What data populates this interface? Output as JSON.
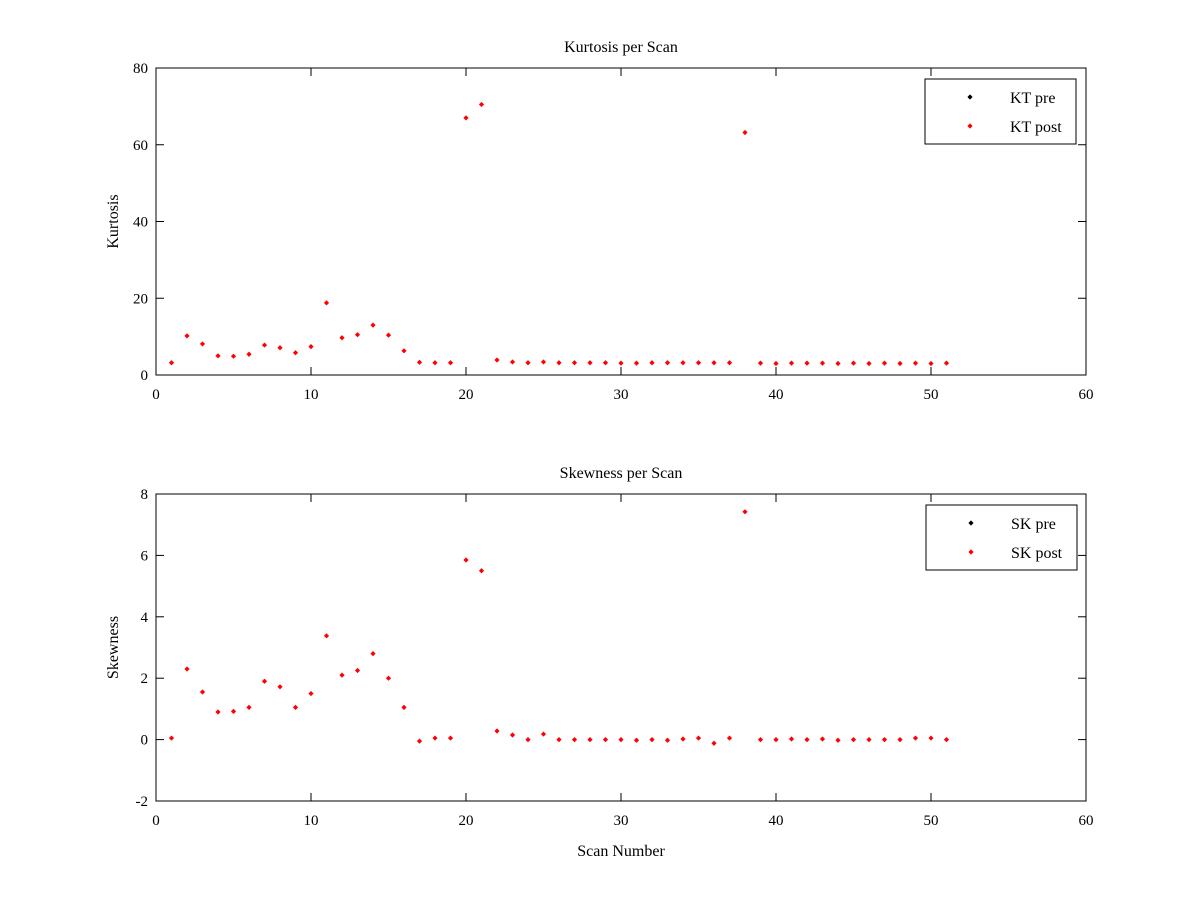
{
  "chart_data": [
    {
      "type": "scatter",
      "title": "Kurtosis per Scan",
      "xlabel": "",
      "ylabel": "Kurtosis",
      "xlim": [
        0,
        60
      ],
      "ylim": [
        0,
        80
      ],
      "xticks": [
        0,
        10,
        20,
        30,
        40,
        50,
        60
      ],
      "yticks": [
        0,
        20,
        40,
        60,
        80
      ],
      "grid": false,
      "legend_position": "top-right",
      "series": [
        {
          "name": "KT pre",
          "color": "#000000",
          "marker": "diamond",
          "x": [],
          "y": []
        },
        {
          "name": "KT post",
          "color": "#ff0000",
          "marker": "diamond",
          "x": [
            1,
            2,
            3,
            4,
            5,
            6,
            7,
            8,
            9,
            10,
            11,
            12,
            13,
            14,
            15,
            16,
            17,
            18,
            19,
            20,
            21,
            22,
            23,
            24,
            25,
            26,
            27,
            28,
            29,
            30,
            31,
            32,
            33,
            34,
            35,
            36,
            37,
            38,
            39,
            40,
            41,
            42,
            43,
            44,
            45,
            46,
            47,
            48,
            49,
            50,
            51
          ],
          "y": [
            3.2,
            10.2,
            8.1,
            5.0,
            4.9,
            5.4,
            7.8,
            7.1,
            5.8,
            7.4,
            18.8,
            9.7,
            10.5,
            13.0,
            10.4,
            6.3,
            3.3,
            3.2,
            3.2,
            67.0,
            70.5,
            3.9,
            3.4,
            3.2,
            3.4,
            3.2,
            3.2,
            3.2,
            3.2,
            3.1,
            3.1,
            3.2,
            3.2,
            3.2,
            3.2,
            3.2,
            3.2,
            63.2,
            3.1,
            3.0,
            3.1,
            3.1,
            3.1,
            3.0,
            3.1,
            3.0,
            3.1,
            3.0,
            3.1,
            3.0,
            3.1
          ]
        }
      ]
    },
    {
      "type": "scatter",
      "title": "Skewness per Scan",
      "xlabel": "Scan Number",
      "ylabel": "Skewness",
      "xlim": [
        0,
        60
      ],
      "ylim": [
        -2,
        8
      ],
      "xticks": [
        0,
        10,
        20,
        30,
        40,
        50,
        60
      ],
      "yticks": [
        -2,
        0,
        2,
        4,
        6,
        8
      ],
      "grid": false,
      "legend_position": "top-right",
      "series": [
        {
          "name": "SK pre",
          "color": "#000000",
          "marker": "diamond",
          "x": [],
          "y": []
        },
        {
          "name": "SK post",
          "color": "#ff0000",
          "marker": "diamond",
          "x": [
            1,
            2,
            3,
            4,
            5,
            6,
            7,
            8,
            9,
            10,
            11,
            12,
            13,
            14,
            15,
            16,
            17,
            18,
            19,
            20,
            21,
            22,
            23,
            24,
            25,
            26,
            27,
            28,
            29,
            30,
            31,
            32,
            33,
            34,
            35,
            36,
            37,
            38,
            39,
            40,
            41,
            42,
            43,
            44,
            45,
            46,
            47,
            48,
            49,
            50,
            51
          ],
          "y": [
            0.05,
            2.3,
            1.55,
            0.9,
            0.92,
            1.05,
            1.9,
            1.72,
            1.05,
            1.5,
            3.38,
            2.1,
            2.25,
            2.8,
            2.0,
            1.05,
            -0.05,
            0.05,
            0.05,
            5.85,
            5.5,
            0.28,
            0.15,
            0.0,
            0.18,
            0.0,
            0.0,
            0.0,
            0.0,
            0.0,
            -0.02,
            0.0,
            -0.02,
            0.02,
            0.05,
            -0.12,
            0.05,
            7.42,
            0.0,
            0.0,
            0.02,
            0.0,
            0.02,
            -0.02,
            0.0,
            0.0,
            0.0,
            0.0,
            0.05,
            0.05,
            0.0
          ]
        }
      ]
    }
  ]
}
